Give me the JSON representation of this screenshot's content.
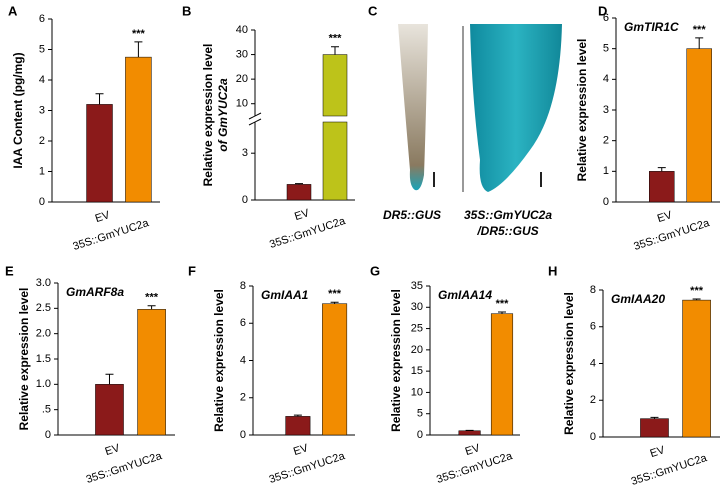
{
  "chart_data": [
    {
      "type": "bar",
      "letter": "A",
      "ylabel": "IAA Content (pg/mg)",
      "categories": [
        "EV",
        "35S::GmYUC2a"
      ],
      "values": [
        3.2,
        4.75
      ],
      "errors": [
        0.35,
        0.5
      ],
      "colors": [
        "#8B1A1A",
        "#F28C00"
      ],
      "significance": "***",
      "ylim": [
        0,
        6
      ],
      "yticks": [
        0,
        1,
        2,
        3,
        4,
        5,
        6
      ]
    },
    {
      "type": "broken-bar",
      "letter": "B",
      "ylabel": "Relative expression level",
      "ylabel2": "of GmYUC2a",
      "categories": [
        "EV",
        "35S::GmYUC2a"
      ],
      "values": [
        1,
        30
      ],
      "errors": [
        0.05,
        3.2
      ],
      "colors": [
        "#8B1A1A",
        "#BDC31A"
      ],
      "significance": "***",
      "segments": [
        {
          "ylim": [
            0,
            5
          ],
          "yticks": [
            0,
            3
          ]
        },
        {
          "ylim": [
            5,
            40
          ],
          "yticks": [
            10,
            20,
            30,
            40
          ]
        }
      ]
    },
    {
      "type": "bar",
      "letter": "D",
      "ylabel": "Relative expression level",
      "annotation": "GmTIR1C",
      "categories": [
        "EV",
        "35S::GmYUC2a"
      ],
      "values": [
        1,
        5
      ],
      "errors": [
        0.12,
        0.35
      ],
      "colors": [
        "#8B1A1A",
        "#F28C00"
      ],
      "significance": "***",
      "ylim": [
        0,
        6
      ],
      "yticks": [
        0,
        1,
        2,
        3,
        4,
        5,
        6
      ]
    },
    {
      "type": "bar",
      "letter": "E",
      "ylabel": "Relative expression level",
      "annotation": "GmARF8a",
      "categories": [
        "EV",
        "35S::GmYUC2a"
      ],
      "values": [
        1,
        2.48
      ],
      "errors": [
        0.2,
        0.07
      ],
      "colors": [
        "#8B1A1A",
        "#F28C00"
      ],
      "significance": "***",
      "ylim": [
        0,
        3
      ],
      "yticks": [
        0,
        {
          "value": 0.5,
          "label": ".5"
        },
        {
          "value": 1,
          "label": "1.0"
        },
        1.5,
        {
          "value": 2,
          "label": "2.0"
        },
        2.5,
        {
          "value": 3,
          "label": "3.0"
        }
      ]
    },
    {
      "type": "bar",
      "letter": "F",
      "ylabel": "Relative expression level",
      "annotation": "GmIAA1",
      "categories": [
        "EV",
        "35S::GmYUC2a"
      ],
      "values": [
        1,
        7.05
      ],
      "errors": [
        0.07,
        0.08
      ],
      "colors": [
        "#8B1A1A",
        "#F28C00"
      ],
      "significance": "***",
      "ylim": [
        0,
        8
      ],
      "yticks": [
        0,
        2,
        4,
        6,
        8
      ]
    },
    {
      "type": "bar",
      "letter": "G",
      "ylabel": "Relative expression level",
      "annotation": "GmIAA14",
      "categories": [
        "EV",
        "35S::GmYUC2a"
      ],
      "values": [
        1,
        28.5
      ],
      "errors": [
        0.1,
        0.4
      ],
      "colors": [
        "#8B1A1A",
        "#F28C00"
      ],
      "significance": "***",
      "ylim": [
        0,
        35
      ],
      "yticks": [
        0,
        5,
        10,
        15,
        20,
        25,
        30,
        35
      ]
    },
    {
      "type": "bar",
      "letter": "H",
      "ylabel": "Relative expression level",
      "annotation": "GmIAA20",
      "categories": [
        "EV",
        "35S::GmYUC2a"
      ],
      "values": [
        1,
        7.45
      ],
      "errors": [
        0.07,
        0.06
      ],
      "colors": [
        "#8B1A1A",
        "#F28C00"
      ],
      "significance": "***",
      "ylim": [
        0,
        8
      ],
      "yticks": [
        0,
        2,
        4,
        6,
        8
      ]
    }
  ],
  "panel_c": {
    "letter": "C",
    "labels": [
      "DR5::GUS",
      "35S::GmYUC2a",
      "/DR5::GUS"
    ]
  }
}
